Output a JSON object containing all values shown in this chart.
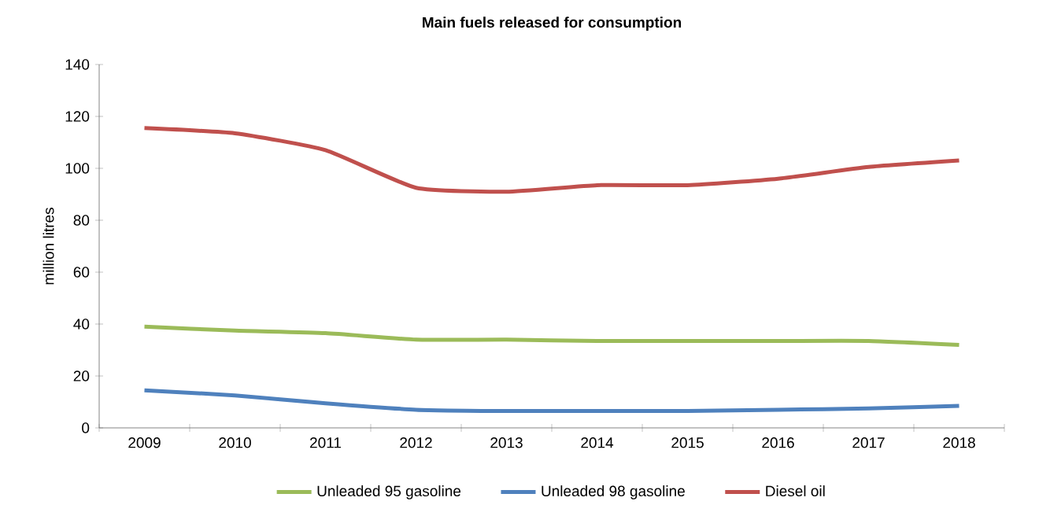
{
  "chart_data": {
    "type": "line",
    "title": "Main fuels released for consumption",
    "ylabel": "million litres",
    "categories": [
      "2009",
      "2010",
      "2011",
      "2012",
      "2013",
      "2014",
      "2015",
      "2016",
      "2017",
      "2018"
    ],
    "ylim": [
      0,
      140
    ],
    "yticks": [
      0,
      20,
      40,
      60,
      80,
      100,
      120,
      140
    ],
    "legend": "bottom",
    "grid": false,
    "marker": "none",
    "series": [
      {
        "name": "Unleaded 95 gasoline",
        "color": "#9bbb59",
        "values": [
          39,
          37.5,
          36.5,
          34,
          34,
          33.5,
          33.5,
          33.5,
          33.5,
          32
        ]
      },
      {
        "name": "Unleaded 98 gasoline",
        "color": "#4f81bd",
        "values": [
          14.5,
          12.5,
          9.5,
          7,
          6.5,
          6.5,
          6.5,
          7,
          7.5,
          8.5
        ]
      },
      {
        "name": "Diesel oil",
        "color": "#c0504d",
        "values": [
          115.5,
          113.5,
          107,
          92.5,
          91,
          93.5,
          93.5,
          96,
          100.5,
          103
        ]
      }
    ]
  }
}
